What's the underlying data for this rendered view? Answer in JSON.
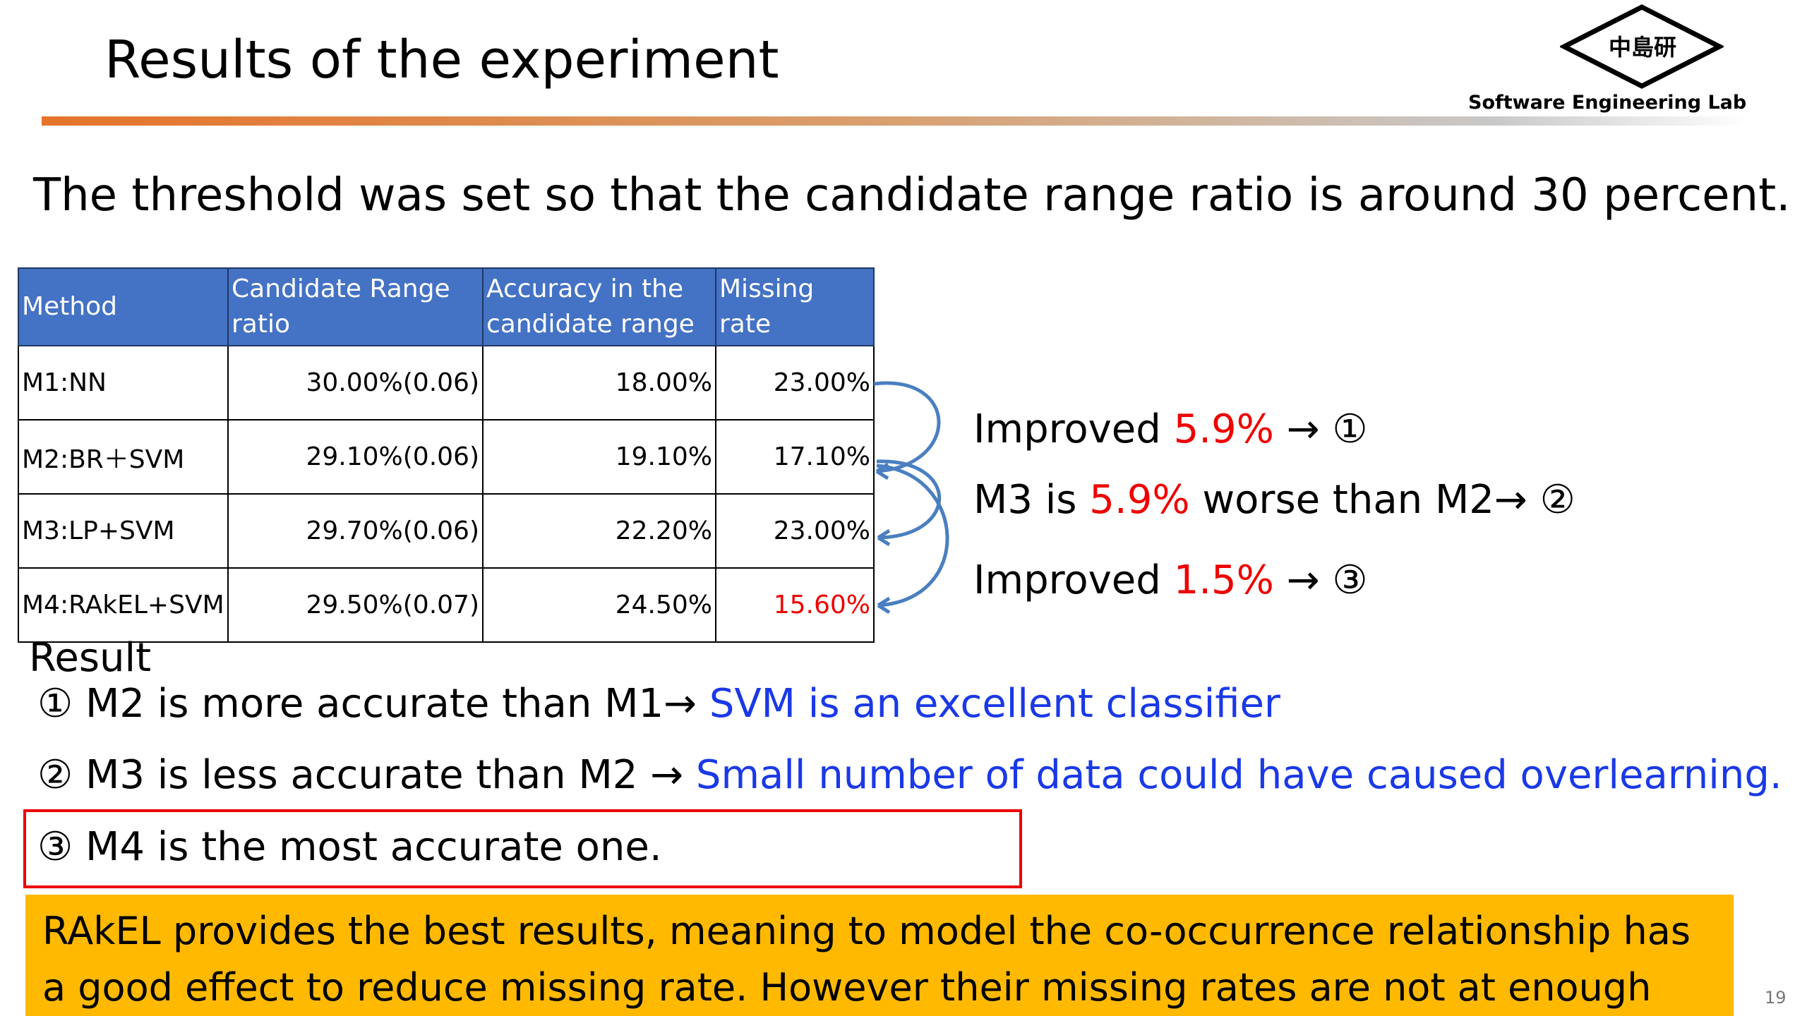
{
  "header": {
    "title": "Results of the experiment",
    "logo": "中島研",
    "lab": "Software Engineering Lab",
    "page": "19"
  },
  "intro": "The threshold was set so that the candidate range ratio is around 30 percent.",
  "table": {
    "headers": [
      "Method",
      "Candidate Range ratio",
      "Accuracy in the candidate range",
      "Missing rate"
    ],
    "rows": [
      [
        "M1:NN",
        "30.00%(0.06)",
        "18.00%",
        "23.00%"
      ],
      [
        "M2:BR＋SVM",
        "29.10%(0.06)",
        "19.10%",
        "17.10%"
      ],
      [
        "M3:LP+SVM",
        "29.70%(0.06)",
        "22.20%",
        "23.00%"
      ],
      [
        "M4:RAkEL+SVM",
        "29.50%(0.07)",
        "24.50%",
        "15.60%"
      ]
    ]
  },
  "annotations": [
    [
      "Improved ",
      "5.9%",
      " → ①"
    ],
    [
      "M3 is ",
      "5.9%",
      " worse than M2→ ②"
    ],
    [
      "Improved ",
      "1.5%",
      " → ③"
    ]
  ],
  "result": {
    "label": "Result",
    "items": [
      [
        "① M2 is more accurate than M1→ ",
        "SVM is an excellent classifier"
      ],
      [
        "② M3 is less accurate than M2 → ",
        "Small number of data could have caused overlearning."
      ],
      [
        "③ M4 is the most accurate one."
      ]
    ]
  },
  "callout": "RAkEL provides the best results, meaning to model the co-occurrence relationship has a good effect to reduce missing rate. However their missing rates are not at enough level for"
}
